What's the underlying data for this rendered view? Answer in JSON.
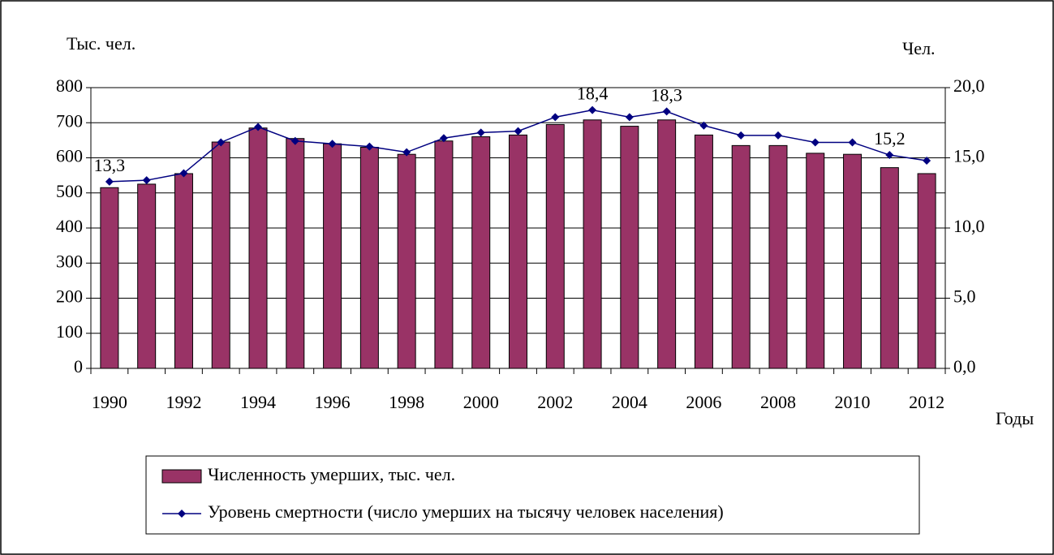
{
  "chart_data": {
    "type": "bar_line",
    "y_axis_label": "Тыс. чел.",
    "y2_axis_label": "Чел.",
    "x_axis_label": "Годы",
    "categories": [
      1990,
      null,
      1992,
      null,
      1994,
      null,
      1996,
      null,
      1998,
      null,
      2000,
      null,
      2002,
      null,
      2004,
      null,
      2006,
      null,
      2008,
      null,
      2010,
      null,
      2012
    ],
    "series": [
      {
        "name": "Численность умерших, тыс. чел.",
        "type": "bar",
        "color": "#993366",
        "values": [
          515,
          525,
          555,
          645,
          685,
          655,
          640,
          630,
          610,
          648,
          660,
          665,
          695,
          708,
          690,
          708,
          665,
          635,
          635,
          613,
          610,
          572,
          555
        ]
      },
      {
        "name": "Уровень смертности (число умерших на тысячу человек населения)",
        "type": "line",
        "axis": "y2",
        "color": "#000080",
        "values": [
          13.3,
          13.4,
          13.9,
          16.1,
          17.2,
          16.2,
          16.0,
          15.8,
          15.4,
          16.4,
          16.8,
          16.9,
          17.9,
          18.4,
          17.9,
          18.3,
          17.3,
          16.6,
          16.6,
          16.1,
          16.1,
          15.2,
          14.8
        ],
        "value_labels": [
          "13,3",
          null,
          null,
          null,
          null,
          null,
          null,
          null,
          null,
          null,
          null,
          null,
          null,
          "18,4",
          null,
          "18,3",
          null,
          null,
          null,
          null,
          null,
          "15,2",
          null
        ]
      }
    ],
    "ylim": [
      0,
      800
    ],
    "yticks": [
      0,
      100,
      200,
      300,
      400,
      500,
      600,
      700,
      800
    ],
    "y2lim": [
      0,
      20
    ],
    "y2ticks": [
      {
        "value": 0,
        "label": "0,0"
      },
      {
        "value": 5,
        "label": "5,0"
      },
      {
        "value": 10,
        "label": "10,0"
      },
      {
        "value": 15,
        "label": "15,0"
      },
      {
        "value": 20,
        "label": "20,0"
      }
    ],
    "grid": true,
    "legend": "bottom"
  }
}
